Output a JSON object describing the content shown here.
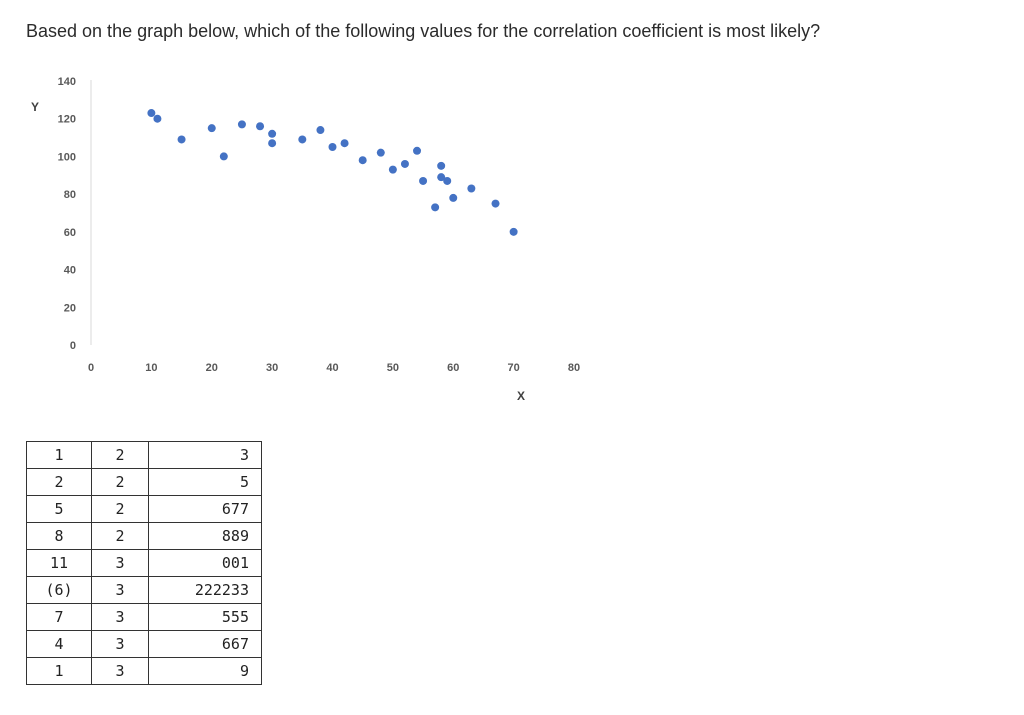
{
  "question": "Based on the graph below, which of the following values for the correlation coefficient is most likely?",
  "chart_data": {
    "type": "scatter",
    "title": "",
    "xlabel": "X",
    "ylabel": "Y",
    "xlim": [
      0,
      80
    ],
    "ylim": [
      0,
      140
    ],
    "xticks": [
      "0",
      "10",
      "20",
      "30",
      "40",
      "50",
      "60",
      "70",
      "80"
    ],
    "yticks": [
      "0",
      "20",
      "40",
      "60",
      "80",
      "100",
      "120",
      "140"
    ],
    "grid": false,
    "point_color": "#4472c4",
    "points": [
      [
        10,
        123
      ],
      [
        11,
        120
      ],
      [
        15,
        109
      ],
      [
        20,
        115
      ],
      [
        22,
        100
      ],
      [
        25,
        117
      ],
      [
        28,
        116
      ],
      [
        30,
        112
      ],
      [
        30,
        107
      ],
      [
        35,
        109
      ],
      [
        38,
        114
      ],
      [
        40,
        105
      ],
      [
        42,
        107
      ],
      [
        45,
        98
      ],
      [
        48,
        102
      ],
      [
        50,
        93
      ],
      [
        52,
        96
      ],
      [
        54,
        103
      ],
      [
        55,
        87
      ],
      [
        57,
        73
      ],
      [
        58,
        95
      ],
      [
        58,
        89
      ],
      [
        59,
        87
      ],
      [
        60,
        78
      ],
      [
        63,
        83
      ],
      [
        67,
        75
      ],
      [
        70,
        60
      ]
    ]
  },
  "table": {
    "rows": [
      [
        "1",
        "2",
        "3"
      ],
      [
        "2",
        "2",
        "5"
      ],
      [
        "5",
        "2",
        "677"
      ],
      [
        "8",
        "2",
        "889"
      ],
      [
        "11",
        "3",
        "001"
      ],
      [
        "(6)",
        "3",
        "222233"
      ],
      [
        "7",
        "3",
        "555"
      ],
      [
        "4",
        "3",
        "667"
      ],
      [
        "1",
        "3",
        "9"
      ]
    ]
  }
}
